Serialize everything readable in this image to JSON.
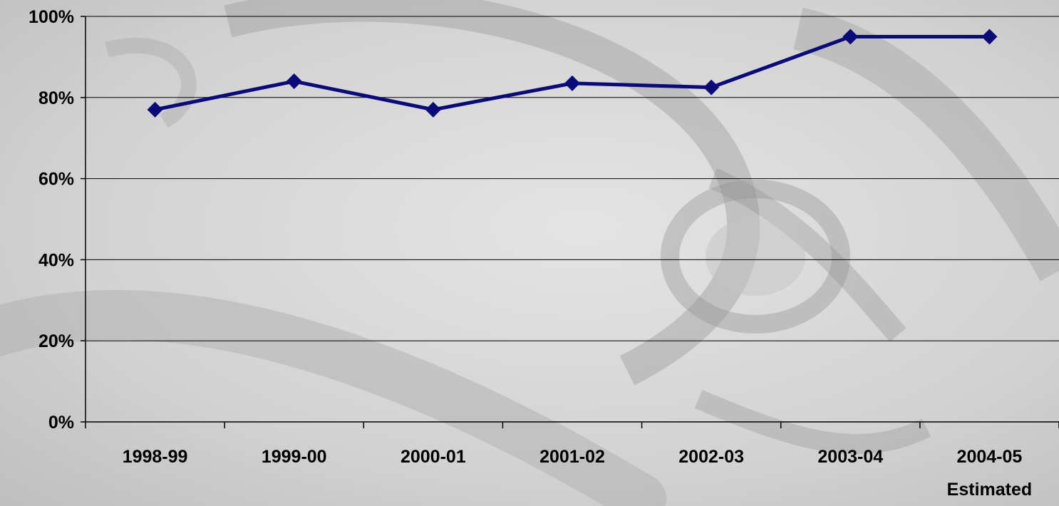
{
  "chart_data": {
    "type": "line",
    "categories": [
      "1998-99",
      "1999-00",
      "2000-01",
      "2001-02",
      "2002-03",
      "2003-04",
      "2004-05"
    ],
    "category_sublabels": [
      "",
      "",
      "",
      "",
      "",
      "",
      "Estimated"
    ],
    "series": [
      {
        "values": [
          77,
          84,
          77,
          83.5,
          82.5,
          95,
          95
        ],
        "color": "#0a0a78",
        "marker": "diamond"
      }
    ],
    "ylim": [
      0,
      100
    ],
    "yticks": [
      "0%",
      "20%",
      "40%",
      "60%",
      "80%",
      "100%"
    ],
    "ytick_values": [
      0,
      20,
      40,
      60,
      80,
      100
    ],
    "title": "",
    "xlabel": "",
    "ylabel": "",
    "grid": true,
    "legend": "none"
  }
}
